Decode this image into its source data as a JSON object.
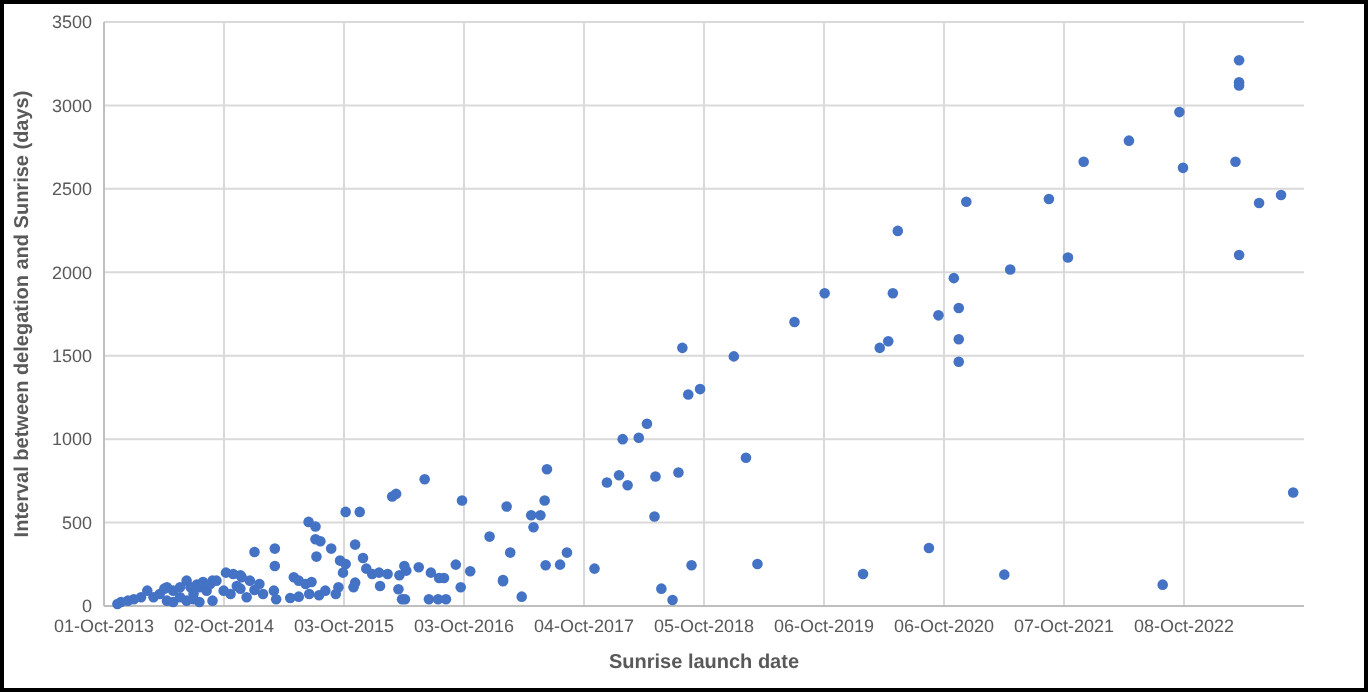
{
  "chart_data": {
    "type": "scatter",
    "xlabel": "Sunrise launch date",
    "ylabel": "Interval between delegation and Sunrise (days)",
    "xlim": [
      "2013-10-01",
      "2023-10-09"
    ],
    "xticks": [
      {
        "value": "2013-10-01",
        "label": "01-Oct-2013"
      },
      {
        "value": "2014-10-02",
        "label": "02-Oct-2014"
      },
      {
        "value": "2015-10-03",
        "label": "03-Oct-2015"
      },
      {
        "value": "2016-10-03",
        "label": "03-Oct-2016"
      },
      {
        "value": "2017-10-04",
        "label": "04-Oct-2017"
      },
      {
        "value": "2018-10-05",
        "label": "05-Oct-2018"
      },
      {
        "value": "2019-10-06",
        "label": "06-Oct-2019"
      },
      {
        "value": "2020-10-06",
        "label": "06-Oct-2020"
      },
      {
        "value": "2021-10-07",
        "label": "07-Oct-2021"
      },
      {
        "value": "2022-10-08",
        "label": "08-Oct-2022"
      }
    ],
    "ylim": [
      0,
      3500
    ],
    "yticks": [
      0,
      500,
      1000,
      1500,
      2000,
      2500,
      3000,
      3500
    ],
    "grid": true,
    "marker": "circle",
    "series": [
      {
        "color": "#4472c4",
        "x": [
          "2014-10-08",
          "2014-11-21",
          "2014-12-20",
          "2015-01-18",
          "2014-10-30",
          "2014-11-25",
          "2014-11-10",
          "2014-10-22",
          "2014-10-01",
          "2014-08-28",
          "2014-08-10",
          "2014-07-19",
          "2014-07-01",
          "2014-06-10",
          "2014-05-21",
          "2014-04-30",
          "2014-04-11",
          "2014-03-20",
          "2014-03-01",
          "2014-02-10",
          "2014-01-22",
          "2013-12-31",
          "2013-12-13",
          "2013-11-22",
          "2013-11-11",
          "2014-06-22",
          "2014-07-11",
          "2014-07-30",
          "2014-08-21",
          "2014-09-09",
          "2014-04-03",
          "2014-04-11",
          "2014-04-30",
          "2014-06-10",
          "2014-07-19",
          "2014-08-28",
          "2014-05-21",
          "2014-07-01",
          "2014-12-10",
          "2014-11-21",
          "2015-01-03",
          "2015-01-29",
          "2015-03-03",
          "2015-03-10",
          "2015-01-03",
          "2015-03-06",
          "2015-03-06",
          "2015-05-03",
          "2015-05-18",
          "2015-06-08",
          "2015-06-26",
          "2015-04-22",
          "2015-05-18",
          "2015-06-19",
          "2015-07-19",
          "2015-08-07",
          "2015-09-08",
          "2015-06-17",
          "2015-07-08",
          "2015-07-08",
          "2015-07-23",
          "2015-08-25",
          "2015-07-11",
          "2015-11-06",
          "2015-11-30",
          "2015-10-08",
          "2015-11-20",
          "2015-10-08",
          "2015-09-21",
          "2015-09-30",
          "2015-09-16",
          "2015-11-01",
          "2015-11-06",
          "2015-12-28",
          "2015-12-10",
          "2016-01-18",
          "2016-02-13",
          "2016-03-20",
          "2016-04-10",
          "2016-05-18",
          "2016-04-04",
          "2016-01-21",
          "2016-03-17",
          "2016-03-28",
          "2016-04-06",
          "2016-02-27",
          "2016-03-10",
          "2016-06-05",
          "2016-09-27",
          "2016-06-24",
          "2016-07-19",
          "2016-08-03",
          "2016-06-18",
          "2016-07-16",
          "2016-08-09",
          "2016-09-08",
          "2016-09-23",
          "2016-10-22",
          "2016-12-20",
          "2017-01-30",
          "2017-01-30",
          "2017-03-28",
          "2017-02-10",
          "2017-06-06",
          "2017-04-26",
          "2017-05-24",
          "2017-05-03",
          "2017-02-21",
          "2017-06-09",
          "2017-07-23",
          "2017-08-13",
          "2017-06-13",
          "2017-11-05",
          "2017-12-13",
          "2018-01-19",
          "2018-02-14",
          "2018-05-10",
          "2018-07-19",
          "2018-01-30",
          "2018-03-20",
          "2018-04-14",
          "2018-05-07",
          "2018-05-28",
          "2018-07-01",
          "2018-08-18",
          "2018-09-23",
          "2018-08-28",
          "2018-07-31",
          "2019-01-04",
          "2019-02-10",
          "2019-03-17",
          "2019-07-08",
          "2019-10-08",
          "2020-02-02",
          "2020-03-24",
          "2020-04-19",
          "2020-05-03",
          "2020-05-18",
          "2020-08-21",
          "2020-09-19",
          "2020-11-05",
          "2020-11-20",
          "2020-11-20",
          "2020-11-20",
          "2020-12-13",
          "2021-04-08",
          "2021-04-26",
          "2021-08-22",
          "2021-10-19",
          "2021-12-06",
          "2022-04-23",
          "2022-08-04",
          "2022-09-24",
          "2022-10-05",
          "2023-03-14",
          "2023-03-25",
          "2023-03-25",
          "2023-03-25",
          "2023-03-25",
          "2023-05-25",
          "2023-07-31",
          "2023-09-06"
        ],
        "values": [
          200,
          184,
          152,
          132,
          192,
          172,
          120,
          72,
          92,
          152,
          92,
          112,
          72,
          152,
          112,
          92,
          112,
          72,
          52,
          92,
          52,
          40,
          32,
          24,
          12,
          112,
          128,
          144,
          132,
          152,
          104,
          32,
          24,
          32,
          24,
          32,
          52,
          40,
          52,
          104,
          96,
          72,
          92,
          40,
          324,
          344,
          240,
          172,
          152,
          132,
          144,
          48,
          56,
          72,
          64,
          92,
          72,
          504,
          476,
          400,
          388,
          344,
          296,
          368,
          288,
          564,
          564,
          252,
          272,
          200,
          112,
          112,
          140,
          192,
          224,
          200,
          192,
          184,
          212,
          232,
          240,
          120,
          100,
          40,
          40,
          656,
          672,
          760,
          632,
          200,
          168,
          168,
          40,
          40,
          40,
          248,
          112,
          208,
          416,
          156,
          148,
          56,
          596,
          632,
          544,
          544,
          472,
          320,
          244,
          248,
          320,
          820,
          224,
          740,
          784,
          724,
          776,
          800,
          1000,
          1008,
          1092,
          536,
          104,
          36,
          1268,
          1300,
          244,
          1547,
          1496,
          888,
          252,
          1702,
          1874,
          192,
          1547,
          1587,
          1874,
          2248,
          348,
          1742,
          1965,
          1786,
          1599,
          1464,
          2423,
          188,
          2017,
          2439,
          2089,
          2662,
          2789,
          128,
          2960,
          2626,
          2662,
          3271,
          3139,
          3119,
          2104,
          2415,
          2463,
          680
        ]
      }
    ]
  }
}
